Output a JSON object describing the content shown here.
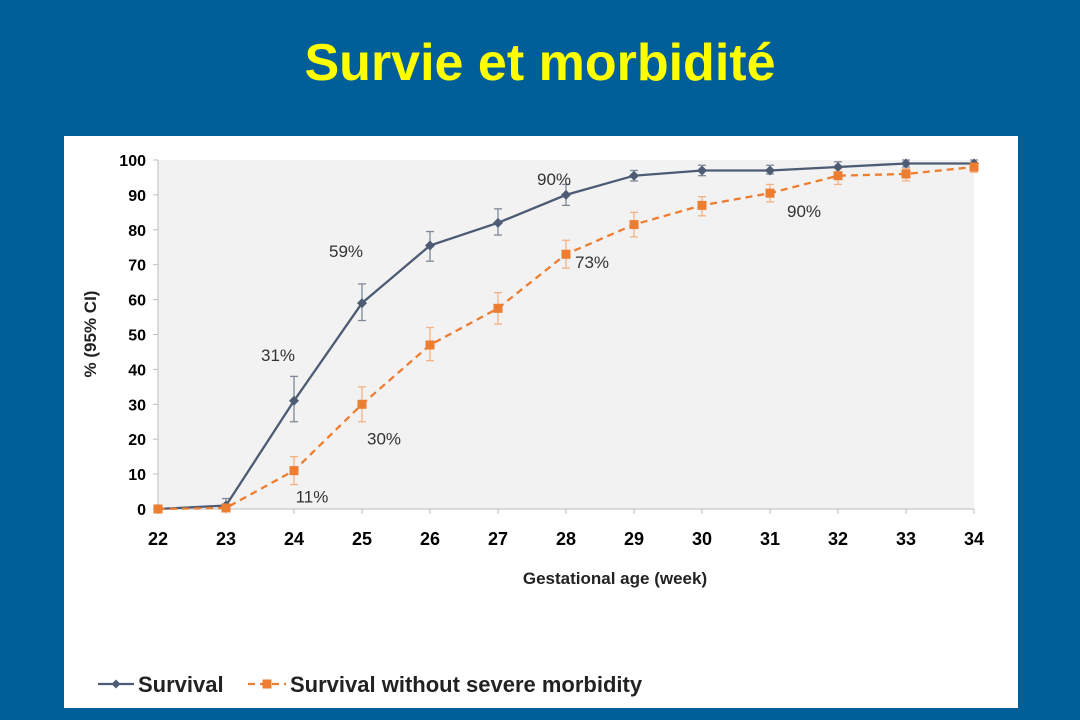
{
  "slide": {
    "title": "Survie et morbidité",
    "background_color": "#005f99",
    "title_color": "#ffff00"
  },
  "chart_data": {
    "type": "line",
    "title": "",
    "xlabel": "Gestational age (week)",
    "ylabel": "% (95% CI)",
    "x": [
      22,
      23,
      24,
      25,
      26,
      27,
      28,
      29,
      30,
      31,
      32,
      33,
      34
    ],
    "xlim": [
      22,
      34
    ],
    "ylim": [
      0,
      100
    ],
    "y_ticks": [
      0,
      10,
      20,
      30,
      40,
      50,
      60,
      70,
      80,
      90,
      100
    ],
    "grid": false,
    "plot_background": "#f2f2f2",
    "legend_position": "bottom-left",
    "series": [
      {
        "name": "Survival",
        "color": "#4d5b74",
        "line_style": "solid",
        "marker": "diamond",
        "values": [
          0,
          1,
          31,
          59,
          75.5,
          82,
          90,
          95.5,
          97,
          97,
          98,
          99,
          99
        ],
        "ci_low": [
          0,
          0,
          25,
          54,
          71,
          78.5,
          87,
          94,
          95.5,
          96,
          96.5,
          98,
          98.5
        ],
        "ci_high": [
          0,
          3,
          38,
          64.5,
          79.5,
          86,
          93,
          97,
          98.5,
          98.5,
          99.5,
          100,
          100
        ]
      },
      {
        "name": "Survival without severe morbidity",
        "color": "#ed7d31",
        "line_style": "dashed",
        "marker": "square",
        "values": [
          0,
          0.3,
          11,
          30,
          47,
          57.5,
          73,
          81.5,
          87,
          90.5,
          95.5,
          96,
          98
        ],
        "ci_low": [
          0,
          0,
          7,
          25,
          42.5,
          53,
          69,
          78,
          84,
          88,
          93,
          94,
          96.5
        ],
        "ci_high": [
          0,
          1,
          15,
          35,
          52,
          62,
          77,
          85,
          89.5,
          93,
          97.5,
          97.5,
          99
        ]
      }
    ],
    "annotations": [
      {
        "text": "31%",
        "series": 0,
        "x": 24
      },
      {
        "text": "59%",
        "series": 0,
        "x": 25
      },
      {
        "text": "90%",
        "series": 0,
        "x": 28
      },
      {
        "text": "11%",
        "series": 1,
        "x": 24
      },
      {
        "text": "30%",
        "series": 1,
        "x": 25
      },
      {
        "text": "73%",
        "series": 1,
        "x": 28
      },
      {
        "text": "90%",
        "series": 1,
        "x": 31
      }
    ]
  }
}
